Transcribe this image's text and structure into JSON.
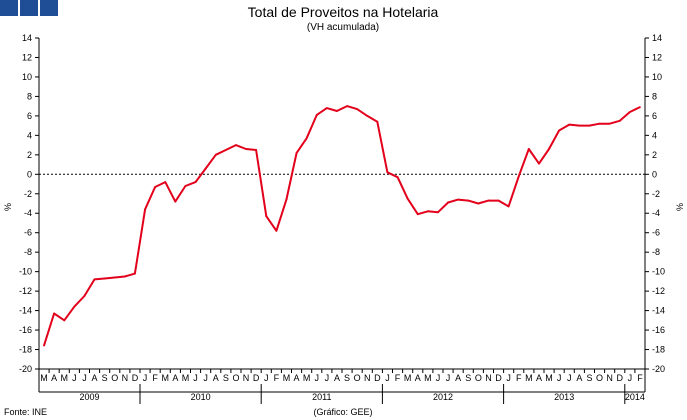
{
  "chart_data": {
    "type": "line",
    "title": "Total de Proveitos na Hotelaria",
    "subtitle": "(VH acumulada)",
    "ylabel": "%",
    "ylim": [
      -20,
      14
    ],
    "yticks": [
      14,
      12,
      10,
      8,
      6,
      4,
      2,
      0,
      -2,
      -4,
      -6,
      -8,
      -10,
      -12,
      -14,
      -16,
      -18,
      -20
    ],
    "grid": false,
    "months": [
      "M",
      "A",
      "M",
      "J",
      "J",
      "A",
      "S",
      "O",
      "N",
      "D",
      "J",
      "F",
      "M",
      "A",
      "M",
      "J",
      "J",
      "A",
      "S",
      "O",
      "N",
      "D",
      "J",
      "F",
      "M",
      "A",
      "M",
      "J",
      "J",
      "A",
      "S",
      "O",
      "N",
      "D",
      "J",
      "F",
      "M",
      "A",
      "M",
      "J",
      "J",
      "A",
      "S",
      "O",
      "N",
      "D",
      "J",
      "F",
      "M",
      "A",
      "M",
      "J",
      "J",
      "A",
      "S",
      "O",
      "N",
      "D",
      "J",
      "F"
    ],
    "years": [
      {
        "label": "2009",
        "start": 0,
        "end": 10
      },
      {
        "label": "2010",
        "start": 10,
        "end": 22
      },
      {
        "label": "2011",
        "start": 22,
        "end": 34
      },
      {
        "label": "2012",
        "start": 34,
        "end": 46
      },
      {
        "label": "2013",
        "start": 46,
        "end": 58
      },
      {
        "label": "2014",
        "start": 58,
        "end": 60
      }
    ],
    "series": [
      {
        "color": "#e3001b",
        "values": [
          -17.6,
          -14.3,
          -15.0,
          -13.6,
          -12.5,
          -10.8,
          -10.7,
          -10.6,
          -10.5,
          -10.2,
          -3.6,
          -1.3,
          -0.8,
          -2.8,
          -1.2,
          -0.8,
          0.6,
          2.0,
          2.5,
          3.0,
          2.6,
          2.5,
          -4.3,
          -5.8,
          -2.6,
          2.2,
          3.7,
          6.1,
          6.8,
          6.5,
          7.0,
          6.7,
          6.0,
          5.4,
          0.2,
          -0.3,
          -2.5,
          -4.1,
          -3.8,
          -3.9,
          -2.9,
          -2.6,
          -2.7,
          -3.0,
          -2.7,
          -2.7,
          -3.3,
          -0.2,
          2.6,
          1.1,
          2.6,
          4.5,
          5.1,
          5.0,
          5.0,
          5.2,
          5.2,
          5.5,
          6.4,
          6.9
        ]
      }
    ]
  },
  "footer": {
    "source": "Fonte: INE",
    "credit": "(Gráfico: GEE)"
  }
}
